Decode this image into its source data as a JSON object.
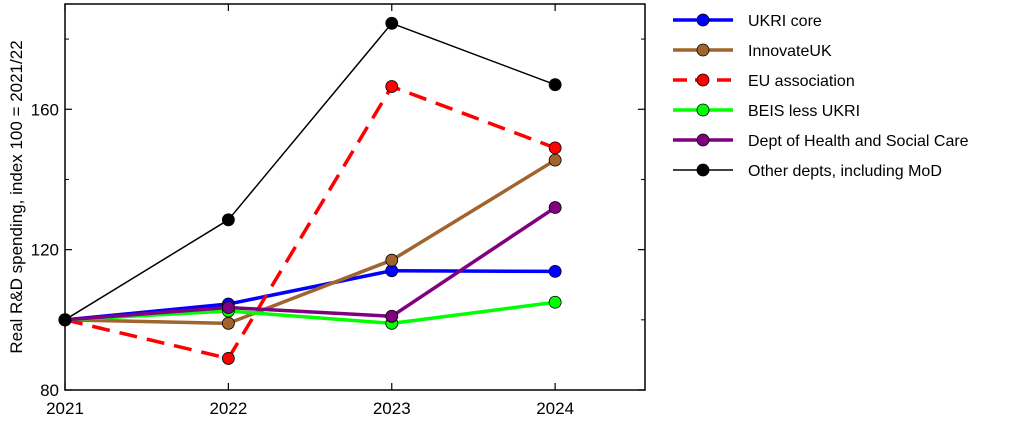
{
  "chart_data": {
    "type": "line",
    "title": "",
    "xlabel": "",
    "ylabel": "Real R&D spending, index 100 = 2021/22",
    "x": [
      2021,
      2022,
      2023,
      2024
    ],
    "x_tick_labels": [
      "2021",
      "2022",
      "2023",
      "2024"
    ],
    "xlim": [
      2021,
      2024.55
    ],
    "ylim": [
      80,
      190
    ],
    "y_ticks": [
      80,
      120,
      160
    ],
    "y_tick_labels": [
      "80",
      "120",
      "160"
    ],
    "grid": false,
    "legend_position": "outside-right",
    "series": [
      {
        "name": "UKRI core",
        "color": "#0000ff",
        "dashed": false,
        "values": [
          100,
          104.5,
          114,
          113.8
        ]
      },
      {
        "name": "InnovateUK",
        "color": "#a0642c",
        "dashed": false,
        "values": [
          100,
          99,
          117,
          145.5
        ]
      },
      {
        "name": "EU association",
        "color": "#ff0000",
        "dashed": true,
        "values": [
          100,
          89,
          166.5,
          149
        ]
      },
      {
        "name": "BEIS less UKRI",
        "color": "#00ff00",
        "dashed": false,
        "values": [
          100,
          102.5,
          99,
          105
        ]
      },
      {
        "name": "Dept of Health and Social Care",
        "color": "#800080",
        "dashed": false,
        "values": [
          100,
          103.5,
          101,
          132
        ]
      },
      {
        "name": "Other depts, including MoD",
        "color": "#000000",
        "dashed": false,
        "values": [
          100,
          128.5,
          184.5,
          167
        ]
      }
    ]
  }
}
